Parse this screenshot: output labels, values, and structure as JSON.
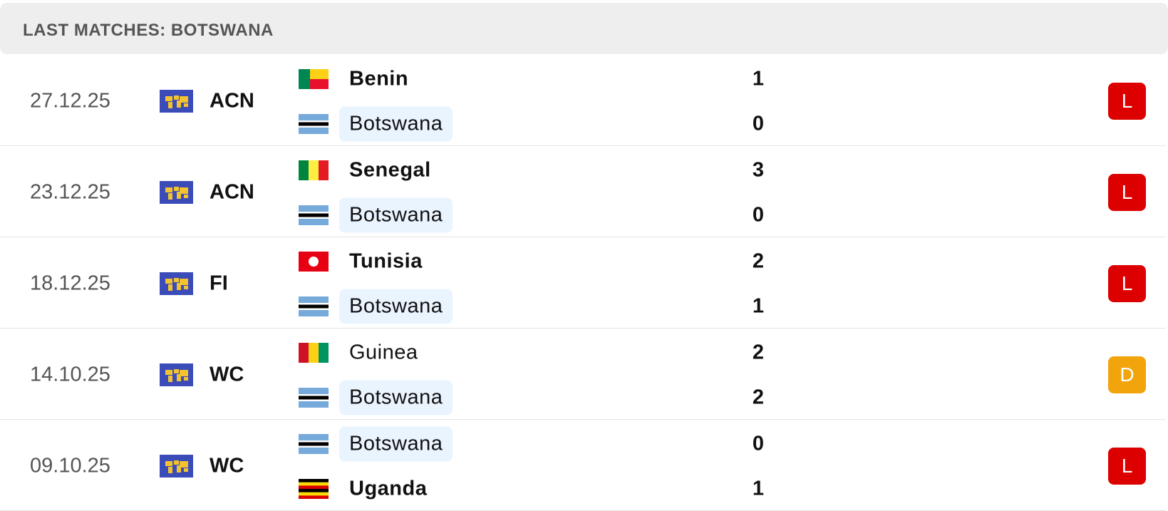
{
  "header": {
    "title": "LAST MATCHES: BOTSWANA"
  },
  "matches": [
    {
      "date": "27.12.25",
      "competition": "ACN",
      "result": "L",
      "result_color": "#dc0000",
      "teams": [
        {
          "name": "Benin",
          "score": 1,
          "highlighted": false,
          "flag": {
            "dir": "benin",
            "colors": [
              "#008751",
              "#fcd116",
              "#e8112d"
            ]
          }
        },
        {
          "name": "Botswana",
          "score": 0,
          "highlighted": true,
          "flag": {
            "dir": "h",
            "colors": [
              "#75aadb",
              "#ffffff",
              "#000000",
              "#ffffff",
              "#75aadb"
            ]
          }
        }
      ]
    },
    {
      "date": "23.12.25",
      "competition": "ACN",
      "result": "L",
      "result_color": "#dc0000",
      "teams": [
        {
          "name": "Senegal",
          "score": 3,
          "highlighted": false,
          "flag": {
            "dir": "v",
            "colors": [
              "#00853f",
              "#fdef42",
              "#e31b23"
            ]
          }
        },
        {
          "name": "Botswana",
          "score": 0,
          "highlighted": true,
          "flag": {
            "dir": "h",
            "colors": [
              "#75aadb",
              "#ffffff",
              "#000000",
              "#ffffff",
              "#75aadb"
            ]
          }
        }
      ]
    },
    {
      "date": "18.12.25",
      "competition": "FI",
      "result": "L",
      "result_color": "#dc0000",
      "teams": [
        {
          "name": "Tunisia",
          "score": 2,
          "highlighted": false,
          "flag": {
            "dir": "solid",
            "colors": [
              "#e70013",
              "#ffffff"
            ]
          }
        },
        {
          "name": "Botswana",
          "score": 1,
          "highlighted": true,
          "flag": {
            "dir": "h",
            "colors": [
              "#75aadb",
              "#ffffff",
              "#000000",
              "#ffffff",
              "#75aadb"
            ]
          }
        }
      ]
    },
    {
      "date": "14.10.25",
      "competition": "WC",
      "result": "D",
      "result_color": "#f2a40c",
      "teams": [
        {
          "name": "Guinea",
          "score": 2,
          "highlighted": false,
          "flag": {
            "dir": "v",
            "colors": [
              "#ce1126",
              "#fcd116",
              "#009460"
            ]
          }
        },
        {
          "name": "Botswana",
          "score": 2,
          "highlighted": true,
          "flag": {
            "dir": "h",
            "colors": [
              "#75aadb",
              "#ffffff",
              "#000000",
              "#ffffff",
              "#75aadb"
            ]
          }
        }
      ]
    },
    {
      "date": "09.10.25",
      "competition": "WC",
      "result": "L",
      "result_color": "#dc0000",
      "teams": [
        {
          "name": "Botswana",
          "score": 0,
          "highlighted": true,
          "flag": {
            "dir": "h",
            "colors": [
              "#75aadb",
              "#ffffff",
              "#000000",
              "#ffffff",
              "#75aadb"
            ]
          }
        },
        {
          "name": "Uganda",
          "score": 1,
          "highlighted": false,
          "flag": {
            "dir": "h",
            "colors": [
              "#000000",
              "#fcdc04",
              "#d90000",
              "#000000",
              "#fcdc04",
              "#d90000"
            ]
          }
        }
      ]
    }
  ]
}
